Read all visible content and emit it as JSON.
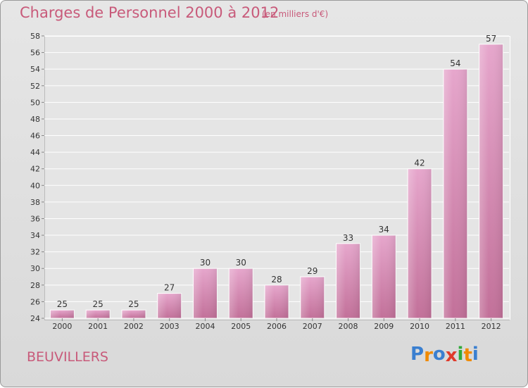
{
  "title": "Charges de Personnel 2000 à 2012",
  "subtitle": "(en milliers d'€)",
  "place": "BEUVILLERS",
  "logo": {
    "letters": [
      "P",
      "r",
      "o",
      "x",
      "i",
      "t",
      "i"
    ],
    "colors": [
      "#3a7fd0",
      "#f08a00",
      "#3a7fd0",
      "#e03a2a",
      "#2faa3a",
      "#f08a00",
      "#3a7fd0"
    ]
  },
  "colors": {
    "bar_top": "#e6a6cc",
    "bar_bottom": "#c27099",
    "text": "#333333",
    "accent": "#c85a7a"
  },
  "chart_data": {
    "type": "bar",
    "categories": [
      "2000",
      "2001",
      "2002",
      "2003",
      "2004",
      "2005",
      "2006",
      "2007",
      "2008",
      "2009",
      "2010",
      "2011",
      "2012"
    ],
    "values": [
      25,
      25,
      25,
      27,
      30,
      30,
      28,
      29,
      33,
      34,
      42,
      54,
      57
    ],
    "ylim": [
      24,
      58
    ],
    "yticks": [
      24,
      26,
      28,
      30,
      32,
      34,
      36,
      38,
      40,
      42,
      44,
      46,
      48,
      50,
      52,
      54,
      56,
      58
    ],
    "xlabel": "",
    "ylabel": "",
    "grid": true
  }
}
